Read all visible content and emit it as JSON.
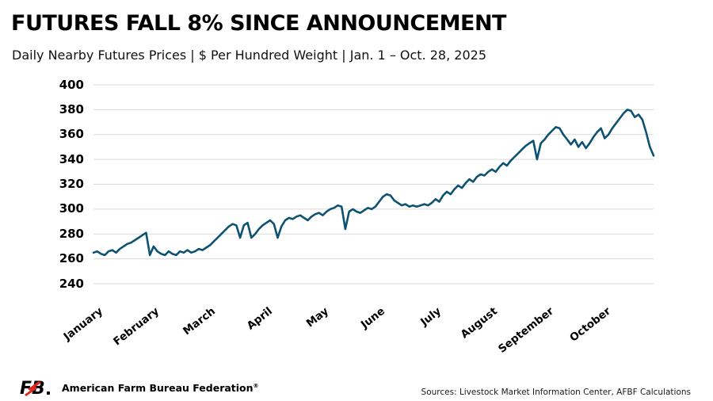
{
  "header": {
    "title": "FUTURES FALL 8% SINCE ANNOUNCEMENT",
    "subtitle": "Daily Nearby Futures Prices | $ Per Hundred Weight | Jan. 1 – Oct. 28, 2025"
  },
  "footer": {
    "org_name": "American Farm Bureau Federation",
    "org_reg_mark": "®",
    "sources": "Sources: Livestock Market Information Center, AFBF Calculations"
  },
  "colors": {
    "line": "#0E5271",
    "grid": "#D9D9D9",
    "afbf_red": "#DA291C",
    "text": "#000000"
  },
  "chart_data": {
    "type": "line",
    "title": "FUTURES FALL 8% SINCE ANNOUNCEMENT",
    "subtitle": "Daily Nearby Futures Prices | $ Per Hundred Weight | Jan. 1 - Oct. 28, 2025",
    "ylabel": "$ Per Hundred Weight",
    "xlabel": "",
    "x_range": "Jan. 1 - Oct. 28, 2025",
    "ylim": [
      240,
      400
    ],
    "yticks": [
      400,
      380,
      360,
      340,
      320,
      300,
      280,
      260,
      240
    ],
    "grid": "horizontal",
    "legend_position": "none",
    "series_name": "Daily nearby futures price ($/cwt)",
    "months": [
      {
        "name": "January",
        "values": [
          265,
          266,
          264,
          263,
          266,
          267,
          265,
          268,
          270,
          272,
          273,
          275,
          277,
          279,
          281
        ]
      },
      {
        "name": "February",
        "values": [
          263,
          270,
          266,
          264,
          263,
          266,
          264,
          263,
          266,
          265,
          267,
          265,
          266,
          268,
          267
        ]
      },
      {
        "name": "March",
        "values": [
          269,
          271,
          274,
          277,
          280,
          283,
          286,
          288,
          287,
          277,
          287,
          289,
          277,
          280,
          284
        ]
      },
      {
        "name": "April",
        "values": [
          287,
          289,
          291,
          288,
          277,
          286,
          291,
          293,
          292,
          294,
          295,
          293,
          291,
          294,
          296
        ]
      },
      {
        "name": "May",
        "values": [
          297,
          295,
          298,
          300,
          301,
          303,
          302,
          284,
          298,
          300,
          298,
          297,
          299,
          301,
          300
        ]
      },
      {
        "name": "June",
        "values": [
          302,
          306,
          310,
          312,
          311,
          307,
          305,
          303,
          304,
          302,
          303,
          302,
          303,
          304,
          303
        ]
      },
      {
        "name": "July",
        "values": [
          305,
          308,
          306,
          311,
          314,
          312,
          316,
          319,
          317,
          321,
          324,
          322,
          326,
          328,
          327
        ]
      },
      {
        "name": "August",
        "values": [
          330,
          332,
          330,
          334,
          337,
          335,
          339,
          342,
          345,
          348,
          351,
          353,
          355,
          340,
          353
        ]
      },
      {
        "name": "September",
        "values": [
          356,
          360,
          363,
          366,
          365,
          360,
          356,
          352,
          356,
          350,
          354,
          349,
          353,
          358,
          362
        ]
      },
      {
        "name": "October",
        "values": [
          365,
          357,
          360,
          365,
          369,
          373,
          377,
          380,
          379,
          374,
          376,
          372,
          362,
          350,
          343
        ]
      }
    ]
  }
}
